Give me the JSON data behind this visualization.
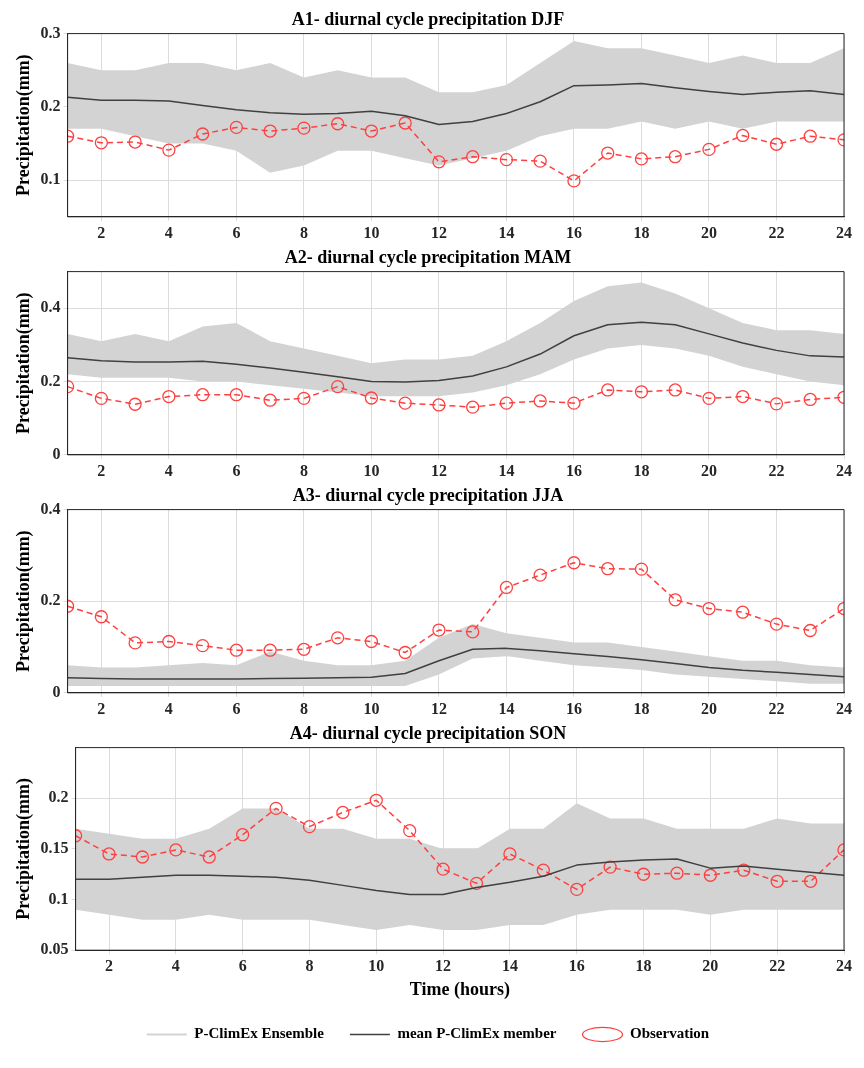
{
  "chart_data": [
    {
      "type": "line",
      "title": "A1- diurnal cycle precipitation DJF",
      "ylabel": "Precipitation(mm)",
      "x": [
        1,
        2,
        3,
        4,
        5,
        6,
        7,
        8,
        9,
        10,
        11,
        12,
        13,
        14,
        15,
        16,
        17,
        18,
        19,
        20,
        21,
        22,
        23,
        24
      ],
      "xlim": [
        1,
        24
      ],
      "xticks": [
        2,
        4,
        6,
        8,
        10,
        12,
        14,
        16,
        18,
        20,
        22,
        24
      ],
      "ylim": [
        0.05,
        0.3
      ],
      "yticks": [
        0.1,
        0.2,
        0.3
      ],
      "grid": true,
      "legend": false,
      "series": [
        {
          "color": "#d3d3d3",
          "marker": "none",
          "line_style": "solid",
          "values": [
            null,
            null,
            null,
            null,
            null,
            null,
            null,
            null,
            null,
            null,
            null,
            null,
            null,
            null,
            null,
            null,
            null,
            null,
            null,
            null,
            null,
            null,
            null,
            null
          ],
          "lower": [
            0.17,
            0.17,
            0.16,
            0.15,
            0.15,
            0.14,
            0.11,
            0.12,
            0.14,
            0.14,
            0.13,
            0.12,
            0.13,
            0.14,
            0.16,
            0.17,
            0.17,
            0.18,
            0.17,
            0.18,
            0.17,
            0.18,
            0.18,
            0.18
          ],
          "upper": [
            0.26,
            0.25,
            0.25,
            0.26,
            0.26,
            0.25,
            0.26,
            0.24,
            0.25,
            0.24,
            0.24,
            0.22,
            0.22,
            0.23,
            0.26,
            0.29,
            0.28,
            0.28,
            0.27,
            0.26,
            0.27,
            0.26,
            0.26,
            0.28
          ]
        },
        {
          "color": "#404040",
          "marker": "none",
          "line_style": "solid",
          "values": [
            0.213,
            0.209,
            0.209,
            0.208,
            0.202,
            0.196,
            0.192,
            0.19,
            0.191,
            0.194,
            0.188,
            0.176,
            0.18,
            0.191,
            0.207,
            0.229,
            0.23,
            0.232,
            0.226,
            0.221,
            0.217,
            0.22,
            0.222,
            0.217
          ]
        },
        {
          "color": "#ff4040",
          "marker": "circle",
          "line_style": "dashed",
          "values": [
            0.16,
            0.151,
            0.152,
            0.141,
            0.163,
            0.172,
            0.167,
            0.171,
            0.177,
            0.167,
            0.178,
            0.125,
            0.132,
            0.128,
            0.126,
            0.099,
            0.137,
            0.129,
            0.132,
            0.142,
            0.161,
            0.149,
            0.16,
            0.155
          ]
        }
      ]
    },
    {
      "type": "line",
      "title": "A2- diurnal cycle precipitation MAM",
      "ylabel": "Precipitation(mm)",
      "x": [
        1,
        2,
        3,
        4,
        5,
        6,
        7,
        8,
        9,
        10,
        11,
        12,
        13,
        14,
        15,
        16,
        17,
        18,
        19,
        20,
        21,
        22,
        23,
        24
      ],
      "xlim": [
        1,
        24
      ],
      "xticks": [
        2,
        4,
        6,
        8,
        10,
        12,
        14,
        16,
        18,
        20,
        22,
        24
      ],
      "ylim": [
        0,
        0.5
      ],
      "yticks": [
        0,
        0.2,
        0.4
      ],
      "grid": true,
      "legend": false,
      "series": [
        {
          "color": "#d3d3d3",
          "marker": "none",
          "line_style": "solid",
          "values": [
            null,
            null,
            null,
            null,
            null,
            null,
            null,
            null,
            null,
            null,
            null,
            null,
            null,
            null,
            null,
            null,
            null,
            null,
            null,
            null,
            null,
            null,
            null,
            null
          ],
          "lower": [
            0.22,
            0.21,
            0.21,
            0.21,
            0.2,
            0.2,
            0.19,
            0.18,
            0.17,
            0.16,
            0.16,
            0.16,
            0.17,
            0.19,
            0.22,
            0.26,
            0.29,
            0.3,
            0.29,
            0.27,
            0.24,
            0.22,
            0.2,
            0.19
          ],
          "upper": [
            0.33,
            0.31,
            0.33,
            0.31,
            0.35,
            0.36,
            0.31,
            0.29,
            0.27,
            0.25,
            0.26,
            0.26,
            0.27,
            0.31,
            0.36,
            0.42,
            0.46,
            0.47,
            0.44,
            0.4,
            0.36,
            0.34,
            0.34,
            0.33
          ]
        },
        {
          "color": "#404040",
          "marker": "none",
          "line_style": "solid",
          "values": [
            0.265,
            0.257,
            0.253,
            0.253,
            0.255,
            0.247,
            0.237,
            0.225,
            0.213,
            0.2,
            0.199,
            0.203,
            0.215,
            0.24,
            0.275,
            0.325,
            0.355,
            0.362,
            0.355,
            0.33,
            0.305,
            0.285,
            0.27,
            0.267
          ]
        },
        {
          "color": "#ff4040",
          "marker": "circle",
          "line_style": "dashed",
          "values": [
            0.186,
            0.154,
            0.138,
            0.159,
            0.164,
            0.164,
            0.149,
            0.154,
            0.186,
            0.155,
            0.141,
            0.136,
            0.13,
            0.141,
            0.147,
            0.141,
            0.177,
            0.172,
            0.177,
            0.154,
            0.159,
            0.139,
            0.151,
            0.157
          ]
        }
      ]
    },
    {
      "type": "line",
      "title": "A3- diurnal cycle precipitation JJA",
      "ylabel": "Precipitation(mm)",
      "x": [
        1,
        2,
        3,
        4,
        5,
        6,
        7,
        8,
        9,
        10,
        11,
        12,
        13,
        14,
        15,
        16,
        17,
        18,
        19,
        20,
        21,
        22,
        23,
        24
      ],
      "xlim": [
        1,
        24
      ],
      "xticks": [
        2,
        4,
        6,
        8,
        10,
        12,
        14,
        16,
        18,
        20,
        22,
        24
      ],
      "ylim": [
        0,
        0.4
      ],
      "yticks": [
        0,
        0.2,
        0.4
      ],
      "grid": true,
      "legend": false,
      "series": [
        {
          "color": "#d3d3d3",
          "marker": "none",
          "line_style": "solid",
          "values": [
            null,
            null,
            null,
            null,
            null,
            null,
            null,
            null,
            null,
            null,
            null,
            null,
            null,
            null,
            null,
            null,
            null,
            null,
            null,
            null,
            null,
            null,
            null,
            null
          ],
          "lower": [
            0.015,
            0.015,
            0.015,
            0.015,
            0.015,
            0.015,
            0.015,
            0.015,
            0.015,
            0.015,
            0.015,
            0.04,
            0.075,
            0.08,
            0.07,
            0.06,
            0.055,
            0.05,
            0.04,
            0.035,
            0.03,
            0.025,
            0.02,
            0.02
          ],
          "upper": [
            0.06,
            0.055,
            0.055,
            0.06,
            0.065,
            0.06,
            0.09,
            0.07,
            0.06,
            0.06,
            0.07,
            0.12,
            0.15,
            0.13,
            0.12,
            0.11,
            0.11,
            0.1,
            0.09,
            0.08,
            0.07,
            0.07,
            0.06,
            0.055
          ]
        },
        {
          "color": "#404040",
          "marker": "none",
          "line_style": "solid",
          "values": [
            0.033,
            0.031,
            0.03,
            0.03,
            0.03,
            0.03,
            0.031,
            0.032,
            0.033,
            0.034,
            0.042,
            0.07,
            0.095,
            0.097,
            0.092,
            0.085,
            0.079,
            0.072,
            0.064,
            0.055,
            0.049,
            0.045,
            0.04,
            0.035
          ]
        },
        {
          "color": "#ff4040",
          "marker": "circle",
          "line_style": "dashed",
          "values": [
            0.189,
            0.166,
            0.109,
            0.112,
            0.103,
            0.093,
            0.093,
            0.095,
            0.12,
            0.112,
            0.088,
            0.137,
            0.133,
            0.23,
            0.257,
            0.284,
            0.271,
            0.27,
            0.203,
            0.184,
            0.176,
            0.15,
            0.136,
            0.184
          ]
        }
      ]
    },
    {
      "type": "line",
      "title": "A4- diurnal cycle precipitation SON",
      "xlabel": "Time (hours)",
      "ylabel": "Precipitation(mm)",
      "x": [
        1,
        2,
        3,
        4,
        5,
        6,
        7,
        8,
        9,
        10,
        11,
        12,
        13,
        14,
        15,
        16,
        17,
        18,
        19,
        20,
        21,
        22,
        23,
        24
      ],
      "xlim": [
        1,
        24
      ],
      "xticks": [
        2,
        4,
        6,
        8,
        10,
        12,
        14,
        16,
        18,
        20,
        22,
        24
      ],
      "ylim": [
        0.05,
        0.25
      ],
      "yticks": [
        0.05,
        0.1,
        0.15,
        0.2
      ],
      "grid": true,
      "legend": "bottom",
      "series": [
        {
          "name": "P-ClimEx Ensemble",
          "color": "#d3d3d3",
          "marker": "none",
          "line_style": "solid",
          "values": [
            null,
            null,
            null,
            null,
            null,
            null,
            null,
            null,
            null,
            null,
            null,
            null,
            null,
            null,
            null,
            null,
            null,
            null,
            null,
            null,
            null,
            null,
            null,
            null
          ],
          "lower": [
            0.09,
            0.085,
            0.08,
            0.08,
            0.085,
            0.08,
            0.08,
            0.08,
            0.075,
            0.07,
            0.075,
            0.07,
            0.07,
            0.075,
            0.075,
            0.085,
            0.09,
            0.09,
            0.09,
            0.085,
            0.09,
            0.09,
            0.09,
            0.09
          ],
          "upper": [
            0.17,
            0.165,
            0.16,
            0.16,
            0.17,
            0.19,
            0.19,
            0.17,
            0.17,
            0.16,
            0.16,
            0.15,
            0.15,
            0.17,
            0.17,
            0.195,
            0.18,
            0.18,
            0.17,
            0.17,
            0.17,
            0.18,
            0.175,
            0.175
          ]
        },
        {
          "name": "mean P-ClimEx member",
          "color": "#404040",
          "marker": "none",
          "line_style": "solid",
          "values": [
            0.12,
            0.12,
            0.122,
            0.124,
            0.124,
            0.123,
            0.122,
            0.119,
            0.114,
            0.109,
            0.105,
            0.105,
            0.112,
            0.117,
            0.123,
            0.134,
            0.137,
            0.139,
            0.14,
            0.131,
            0.133,
            0.13,
            0.127,
            0.124
          ]
        },
        {
          "name": "Observation",
          "color": "#ff4040",
          "marker": "circle",
          "line_style": "dashed",
          "values": [
            0.163,
            0.145,
            0.142,
            0.149,
            0.142,
            0.164,
            0.19,
            0.172,
            0.186,
            0.198,
            0.168,
            0.13,
            0.116,
            0.145,
            0.129,
            0.11,
            0.132,
            0.125,
            0.126,
            0.124,
            0.129,
            0.118,
            0.118,
            0.149
          ]
        }
      ]
    }
  ]
}
